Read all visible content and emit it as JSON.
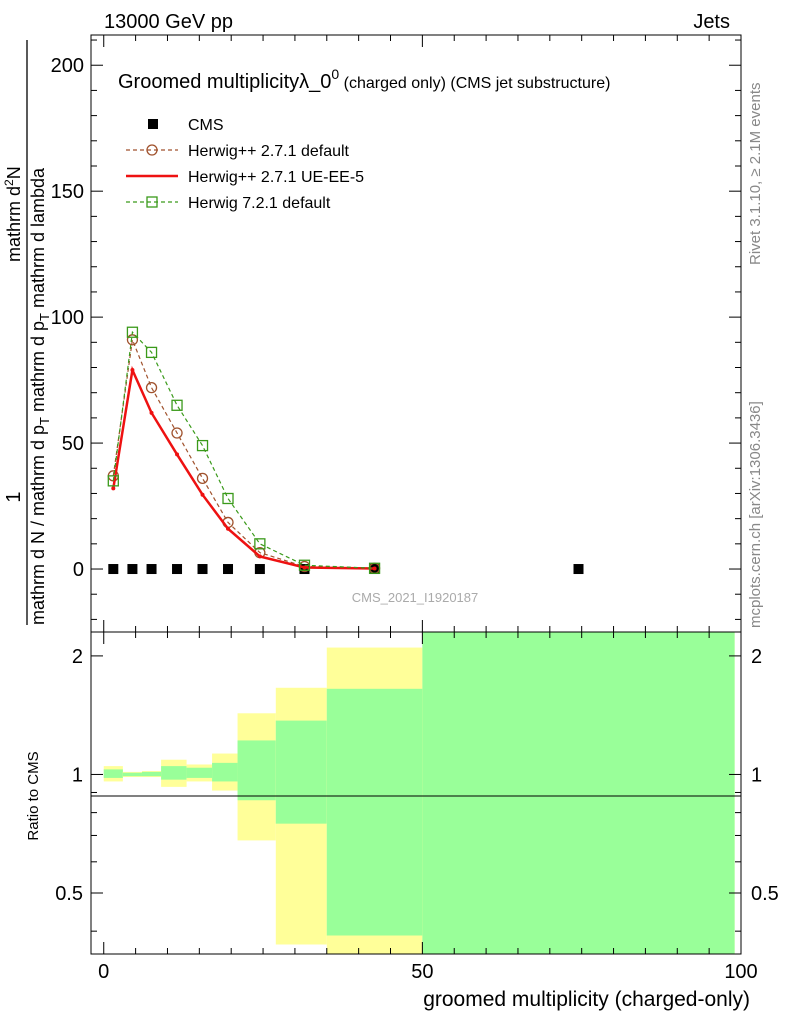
{
  "header": {
    "left": "13000 GeV pp",
    "right": "Jets"
  },
  "side_labels": {
    "top": "Rivet 3.1.10, ≥ 2.1M events",
    "bottom": "mcplots.cern.ch [arXiv:1306.3436]"
  },
  "watermark": "CMS_2021_I1920187",
  "colors": {
    "cms": "#000000",
    "herwig_default": "#a0522d",
    "herwig_ue": "#ee1111",
    "herwig7": "#3a9a1a",
    "band_stat": "#99ff99",
    "band_total": "#ffff99"
  },
  "chart_data": [
    {
      "type": "line",
      "title_main": "Groomed multiplicityλ_0",
      "title_sup": "0",
      "title_tail": " (charged only) (CMS jet substructure)",
      "ylabel_num": "1",
      "ylabel_den": "mathrm d N / mathrm d p",
      "ylabel_den_sub": "T",
      "ylabel_den_tail": " mathrm d p",
      "ylabel_den_sub2": "T",
      "ylabel_den_tail2": " mathrm d lambda",
      "ylabel_top": "mathrm d",
      "ylabel_top_sup": "2",
      "ylabel_top_tail": "N",
      "xlim": [
        -2,
        100
      ],
      "ylim": [
        -25,
        212
      ],
      "yticks": [
        0,
        50,
        100,
        150,
        200
      ],
      "series": [
        {
          "name": "CMS",
          "style": "square-markers",
          "x": [
            1.5,
            4.5,
            7.5,
            11.5,
            15.5,
            19.5,
            24.5,
            31.5,
            42.5,
            74.5
          ],
          "y": [
            0,
            0,
            0,
            0,
            0,
            0,
            0,
            0,
            0,
            0
          ]
        },
        {
          "name": "Herwig++ 2.7.1 default",
          "style": "dashed-circle",
          "x": [
            1.5,
            4.5,
            7.5,
            11.5,
            15.5,
            19.5,
            24.5,
            31.5,
            42.5
          ],
          "y": [
            37,
            91,
            72,
            54,
            36,
            18.5,
            6.5,
            1,
            0.3
          ]
        },
        {
          "name": "Herwig++ 2.7.1 UE-EE-5",
          "style": "solid-line",
          "x": [
            1.5,
            4.5,
            7.5,
            11.5,
            15.5,
            19.5,
            24.5,
            31.5,
            42.5
          ],
          "y": [
            32,
            79,
            62,
            45.5,
            29.5,
            16,
            5,
            0.6,
            0.2
          ]
        },
        {
          "name": "Herwig 7.2.1 default",
          "style": "dashed-square",
          "x": [
            1.5,
            4.5,
            7.5,
            11.5,
            15.5,
            19.5,
            24.5,
            31.5,
            42.5
          ],
          "y": [
            35,
            94,
            86,
            65,
            49,
            28,
            10,
            1.5,
            0.3
          ]
        }
      ]
    },
    {
      "type": "area",
      "ylabel": "Ratio to CMS",
      "xlabel": "groomed multiplicity (charged-only)",
      "xlim": [
        -2,
        100
      ],
      "ylim": [
        0.35,
        2.3
      ],
      "yticks": [
        0.5,
        1,
        2
      ],
      "ytick_labels": [
        "0.5",
        "1",
        "2"
      ],
      "xticks": [
        0,
        50,
        100
      ],
      "xtick_labels": [
        "0",
        "50",
        "100"
      ],
      "bins": [
        {
          "lo": 0,
          "hi": 3,
          "stat": [
            0.98,
            1.03
          ],
          "total": [
            0.96,
            1.05
          ]
        },
        {
          "lo": 3,
          "hi": 6,
          "stat": [
            0.99,
            1.01
          ],
          "total": [
            0.985,
            1.015
          ]
        },
        {
          "lo": 6,
          "hi": 9,
          "stat": [
            0.99,
            1.015
          ],
          "total": [
            0.985,
            1.02
          ]
        },
        {
          "lo": 9,
          "hi": 13,
          "stat": [
            0.97,
            1.05
          ],
          "total": [
            0.93,
            1.09
          ]
        },
        {
          "lo": 13,
          "hi": 17,
          "stat": [
            0.98,
            1.04
          ],
          "total": [
            0.96,
            1.06
          ]
        },
        {
          "lo": 17,
          "hi": 21,
          "stat": [
            0.96,
            1.07
          ],
          "total": [
            0.91,
            1.13
          ]
        },
        {
          "lo": 21,
          "hi": 27,
          "stat": [
            0.86,
            1.22
          ],
          "total": [
            0.68,
            1.43
          ]
        },
        {
          "lo": 27,
          "hi": 35,
          "stat": [
            0.75,
            1.37
          ],
          "total": [
            0.37,
            1.66
          ]
        },
        {
          "lo": 35,
          "hi": 50,
          "stat": [
            0.39,
            1.65
          ],
          "total": [
            0.33,
            2.1
          ]
        },
        {
          "lo": 50,
          "hi": 99,
          "stat": [
            0.33,
            2.3
          ],
          "total": [
            0.33,
            2.3
          ]
        }
      ]
    }
  ]
}
